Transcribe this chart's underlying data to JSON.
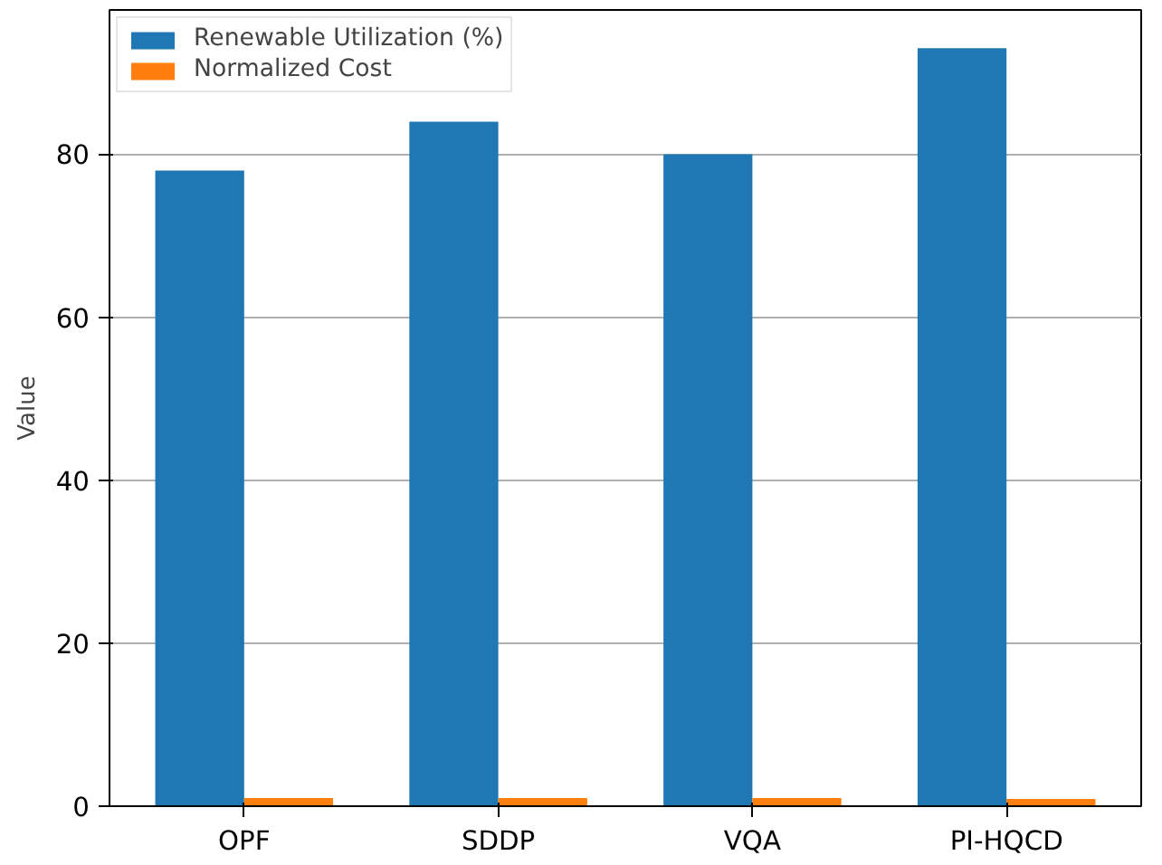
{
  "chart_data": {
    "type": "bar",
    "ylabel": "Value",
    "categories": [
      "OPF",
      "SDDP",
      "VQA",
      "PI-HQCD"
    ],
    "series": [
      {
        "name": "Renewable Utilization (%)",
        "color": "#1f77b4",
        "values": [
          78,
          84,
          80,
          93
        ]
      },
      {
        "name": "Normalized Cost",
        "color": "#ff7f0e",
        "values": [
          1.0,
          1.0,
          1.0,
          0.9
        ]
      }
    ],
    "ylim": [
      0,
      97.7
    ],
    "yticks": [
      0,
      20,
      40,
      60,
      80
    ],
    "grid": "y",
    "legend": "top left"
  }
}
